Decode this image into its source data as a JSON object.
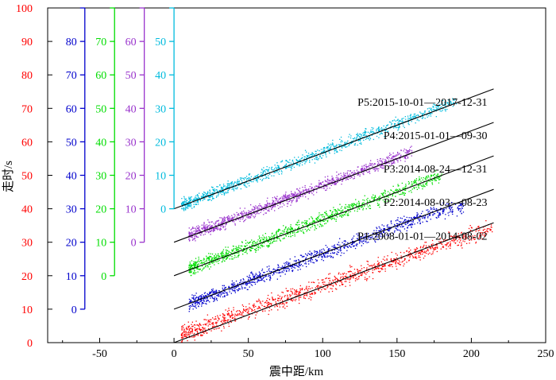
{
  "chart_data": {
    "type": "scatter",
    "xlabel": "震中距/km",
    "ylabel": "走时/s",
    "xlim": [
      -85,
      250
    ],
    "ylim": [
      0,
      100
    ],
    "x_ticks": [
      "-50",
      "0",
      "50",
      "100",
      "150",
      "200",
      "250"
    ],
    "y_ticks": [
      "0",
      "10",
      "20",
      "30",
      "40",
      "50",
      "60",
      "70",
      "80",
      "90",
      "100"
    ],
    "grid": false,
    "series": [
      {
        "name": "P1:2008-01-01—2014-08-02",
        "color": "#ff0000",
        "offset": 0,
        "fit": [
          [
            0,
            0
          ],
          [
            215,
            35.8
          ]
        ],
        "scatter": [
          [
            5,
            2.5
          ],
          [
            215,
            34.5
          ]
        ],
        "spread": 1.2,
        "axis_ticks": [
          "0",
          "10",
          "20",
          "30",
          "40",
          "50",
          "60",
          "70",
          "80",
          "90",
          "100"
        ]
      },
      {
        "name": "P2:2014-08-03—08-23",
        "color": "#0000cc",
        "offset": 10,
        "fit": [
          [
            0,
            0
          ],
          [
            215,
            35.8
          ]
        ],
        "scatter": [
          [
            10,
            1.5
          ],
          [
            100,
            16.5
          ],
          [
            175,
            29
          ],
          [
            195,
            31
          ]
        ],
        "spread": 1.0,
        "axis_ticks": [
          "0",
          "10",
          "20",
          "30",
          "40",
          "50",
          "60",
          "70",
          "80"
        ]
      },
      {
        "name": "P3:2014-08-24—12-31",
        "color": "#00dd00",
        "offset": 20,
        "fit": [
          [
            0,
            0
          ],
          [
            215,
            35.8
          ]
        ],
        "scatter": [
          [
            10,
            2
          ],
          [
            100,
            17
          ],
          [
            180,
            30
          ]
        ],
        "spread": 1.0,
        "axis_ticks": [
          "0",
          "10",
          "20",
          "30",
          "40",
          "50",
          "60",
          "70"
        ]
      },
      {
        "name": "P4:2015-01-01—09-30",
        "color": "#9933cc",
        "offset": 30,
        "fit": [
          [
            0,
            0
          ],
          [
            215,
            35.8
          ]
        ],
        "scatter": [
          [
            10,
            2
          ],
          [
            100,
            17
          ],
          [
            160,
            27
          ]
        ],
        "spread": 0.9,
        "axis_ticks": [
          "0",
          "10",
          "20",
          "30",
          "40",
          "50",
          "60"
        ]
      },
      {
        "name": "P5:2015-10-01—2017-12-31",
        "color": "#00bbdd",
        "offset": 40,
        "fit": [
          [
            0,
            0
          ],
          [
            215,
            35.8
          ]
        ],
        "scatter": [
          [
            5,
            1
          ],
          [
            100,
            17
          ],
          [
            190,
            32
          ]
        ],
        "spread": 0.9,
        "axis_ticks": [
          "0",
          "10",
          "20",
          "30",
          "40",
          "50"
        ]
      }
    ]
  }
}
